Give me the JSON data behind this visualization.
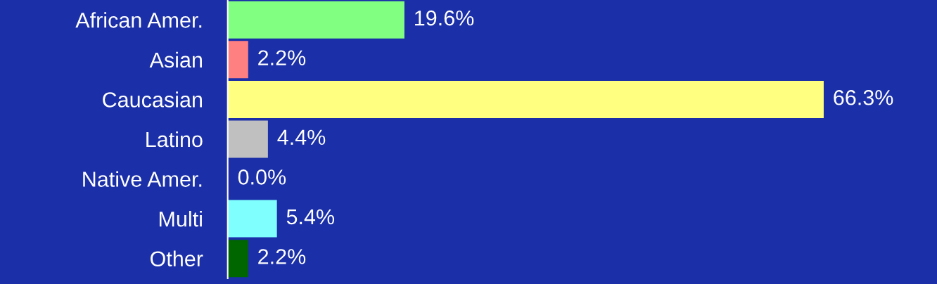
{
  "chart_data": {
    "type": "bar",
    "orientation": "horizontal",
    "categories": [
      "African Amer.",
      "Asian",
      "Caucasian",
      "Latino",
      "Native Amer.",
      "Multi",
      "Other"
    ],
    "values": [
      19.6,
      2.2,
      66.3,
      4.4,
      0.0,
      5.4,
      2.2
    ],
    "colors": [
      "#80ff80",
      "#ff8080",
      "#ffff80",
      "#c0c0c0",
      "#800080",
      "#80ffff",
      "#006600"
    ],
    "value_labels": [
      "19.6%",
      "2.2%",
      "66.3%",
      "4.4%",
      "0.0%",
      "5.4%",
      "2.2%"
    ],
    "xlim": [
      0,
      79
    ],
    "tick_labels": "y",
    "grid": false,
    "legend": false
  }
}
